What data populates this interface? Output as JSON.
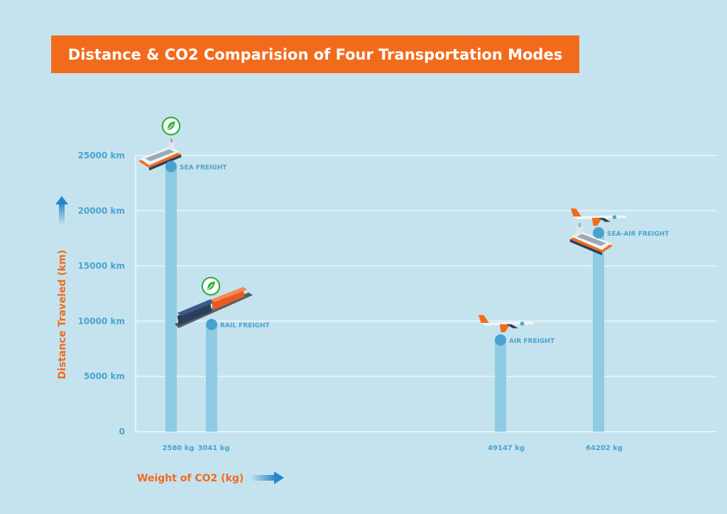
{
  "chart_data": {
    "type": "bar",
    "title": "Distance & CO2 Comparision of Four Transportation Modes",
    "xlabel": "Weight of CO2 (kg)",
    "ylabel": "Distance Traveled (km)",
    "ylim": [
      0,
      25000
    ],
    "yticks": [
      {
        "value": 0,
        "label": "0"
      },
      {
        "value": 5000,
        "label": "5000 km"
      },
      {
        "value": 10000,
        "label": "10000 km"
      },
      {
        "value": 15000,
        "label": "15000 km"
      },
      {
        "value": 20000,
        "label": "20000 km"
      },
      {
        "value": 25000,
        "label": "25000 km"
      }
    ],
    "grid": true,
    "points": [
      {
        "mode": "SEA FREIGHT",
        "co2_kg": 2580,
        "x_label": "2580 kg",
        "distance_km": 24000,
        "eco_icon": true,
        "vehicle": "ship-icon"
      },
      {
        "mode": "RAIL FREIGHT",
        "co2_kg": 3041,
        "x_label": "3041 kg",
        "distance_km": 9700,
        "eco_icon": true,
        "vehicle": "train-icon"
      },
      {
        "mode": "AIR FREIGHT",
        "co2_kg": 49147,
        "x_label": "49147 kg",
        "distance_km": 8300,
        "eco_icon": false,
        "vehicle": "airplane-icon"
      },
      {
        "mode": "SEA-AIR FREIGHT",
        "co2_kg": 64202,
        "x_label": "64202 kg",
        "distance_km": 18000,
        "eco_icon": false,
        "vehicle": "ship-and-airplane-icon"
      }
    ]
  },
  "colors": {
    "background": "#c5e3ee",
    "accent": "#f26b1d",
    "bar": "#8fcbe2",
    "point": "#4aa3cf",
    "tick_text": "#4aa3cf",
    "grid": "#e4f2f8",
    "eco": "#2fb23a"
  }
}
